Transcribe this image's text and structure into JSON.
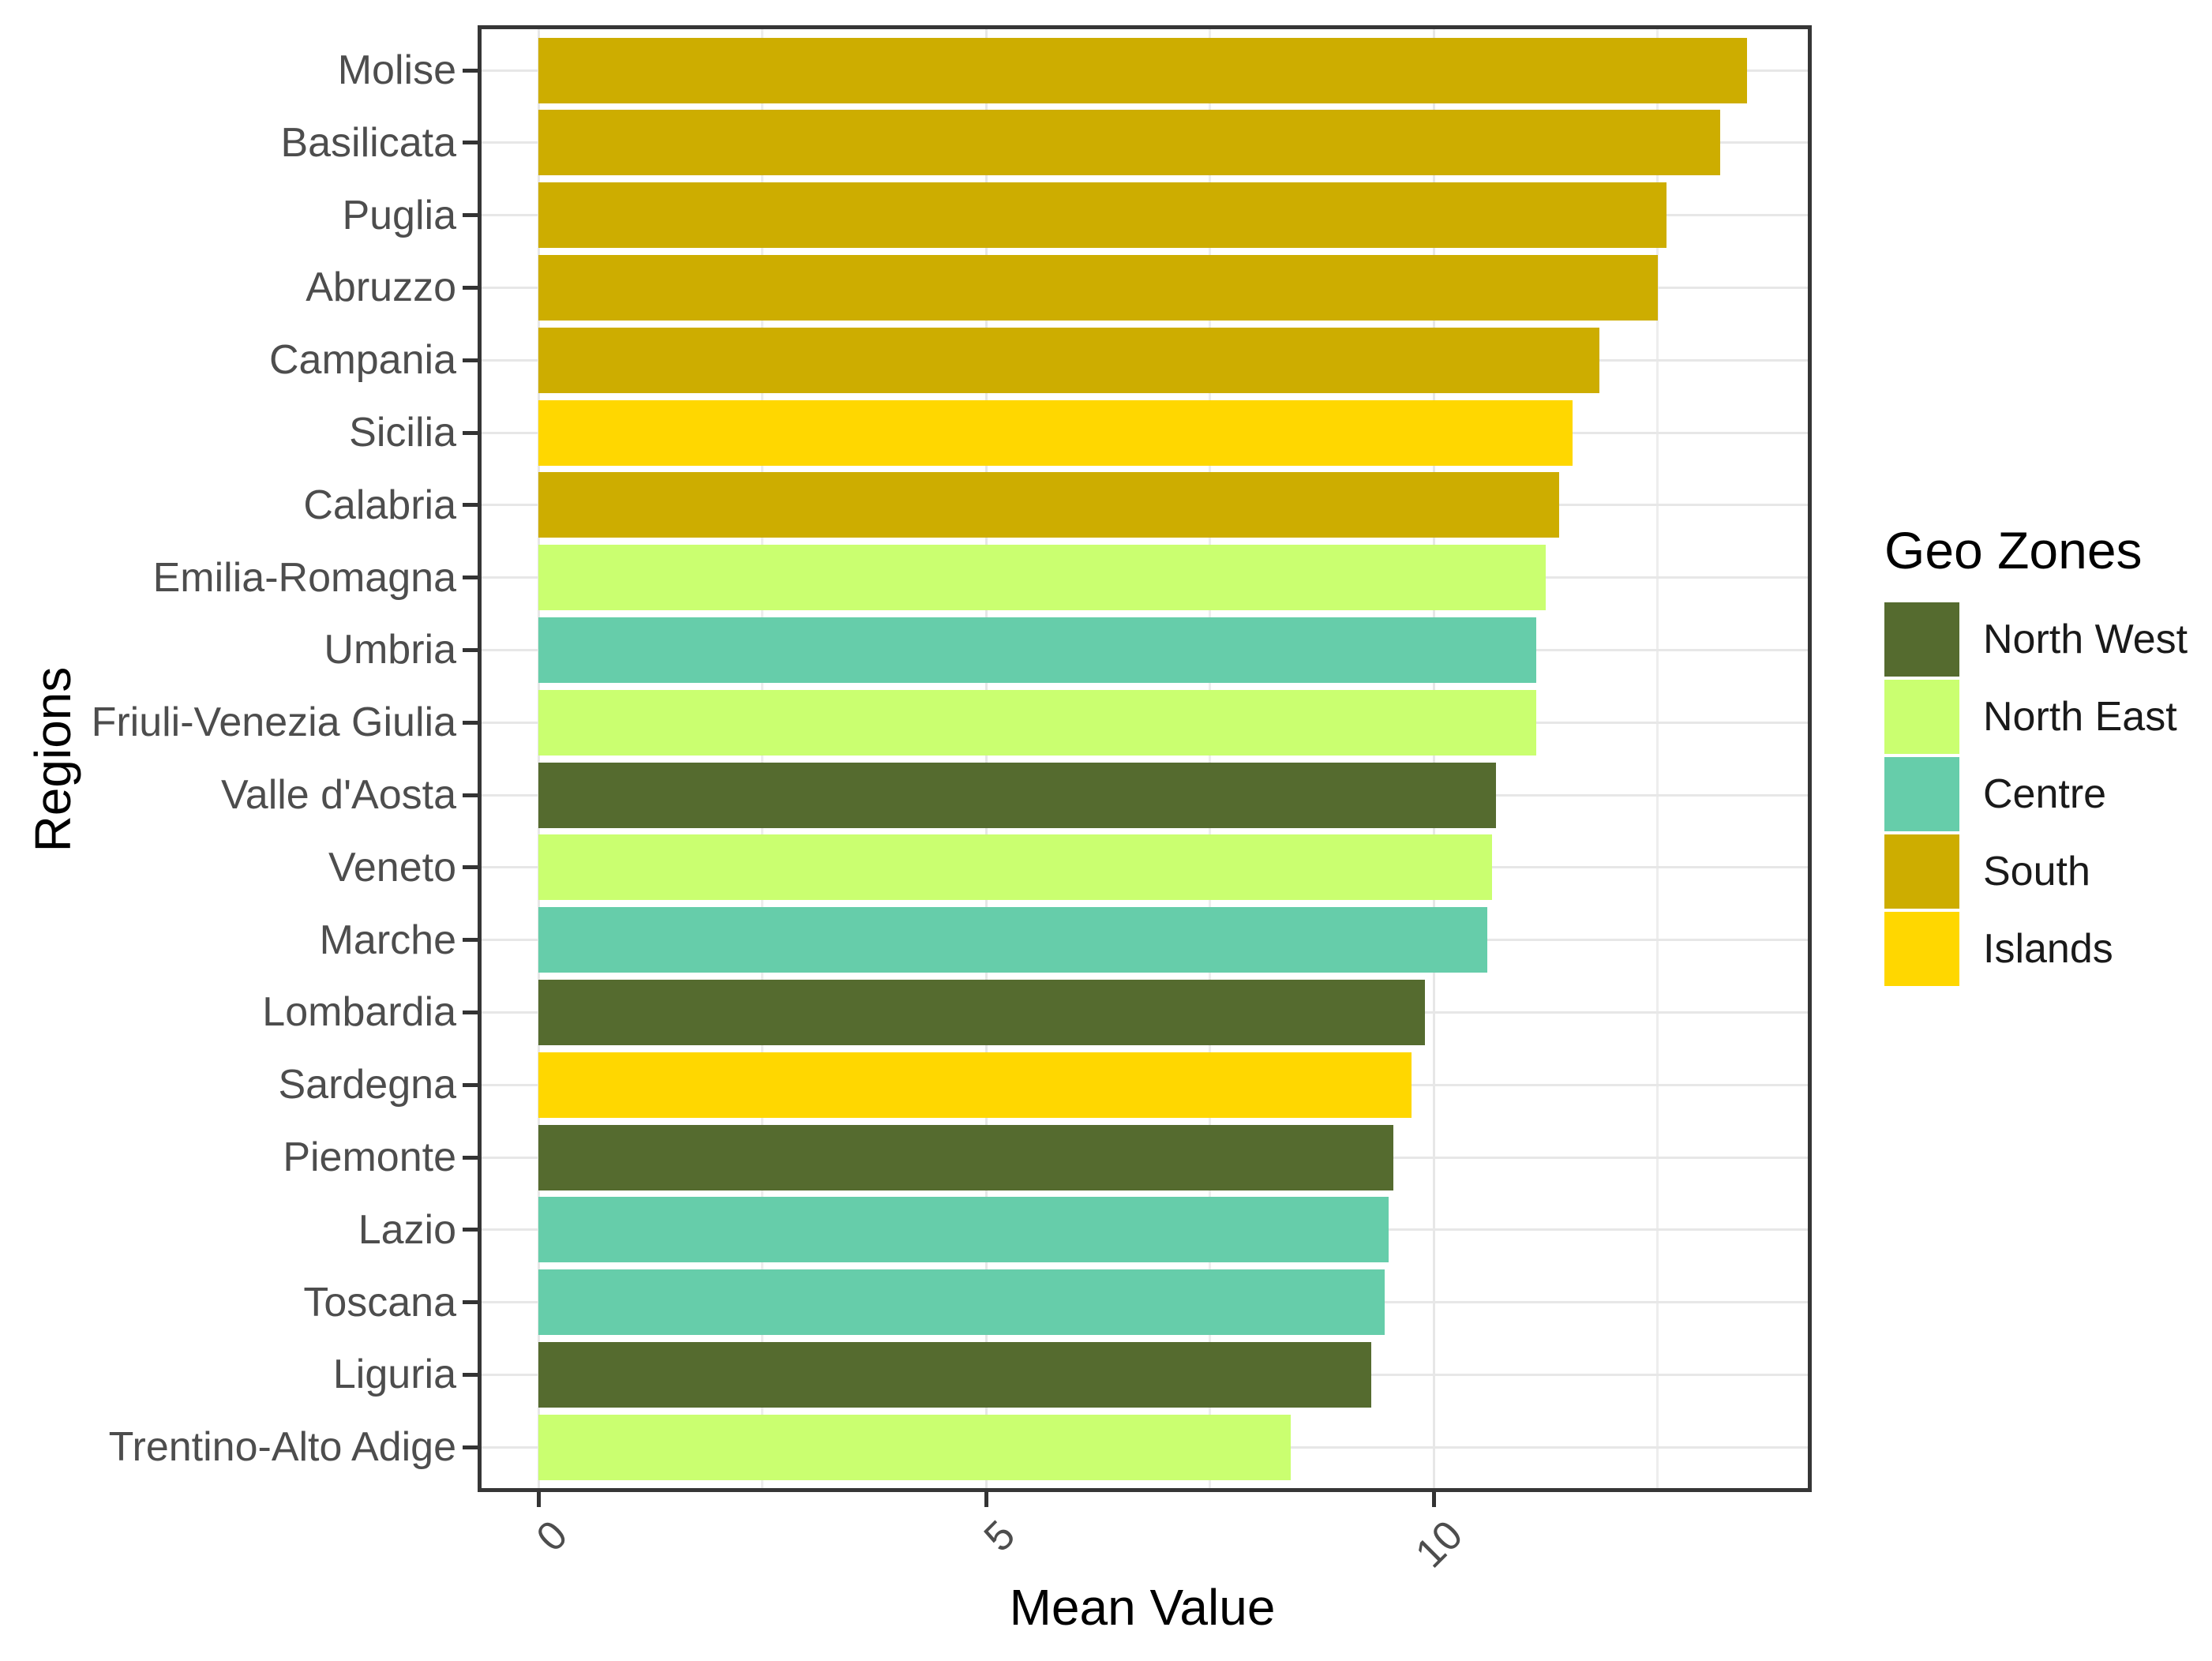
{
  "chart_data": {
    "type": "bar",
    "orientation": "horizontal",
    "title": "",
    "xlabel": "Mean Value",
    "ylabel": "Regions",
    "x_ticks": [
      0,
      5,
      10
    ],
    "x_gridlines": [
      0,
      2.5,
      5,
      7.5,
      10,
      12.5
    ],
    "xlim": [
      -0.7,
      14.2
    ],
    "grid": true,
    "legend": {
      "title": "Geo Zones",
      "position": "right",
      "entries": [
        {
          "label": "North West",
          "color": "#556B2F"
        },
        {
          "label": "North East",
          "color": "#CAFF70"
        },
        {
          "label": "Centre",
          "color": "#66CDAA"
        },
        {
          "label": "South",
          "color": "#CDAD00"
        },
        {
          "label": "Islands",
          "color": "#FFD700"
        }
      ]
    },
    "zone_colors": {
      "North West": "#556B2F",
      "North East": "#CAFF70",
      "Centre": "#66CDAA",
      "South": "#CDAD00",
      "Islands": "#FFD700"
    },
    "bars": [
      {
        "region": "Molise",
        "zone": "South",
        "value": 13.5
      },
      {
        "region": "Basilicata",
        "zone": "South",
        "value": 13.2
      },
      {
        "region": "Puglia",
        "zone": "South",
        "value": 12.6
      },
      {
        "region": "Abruzzo",
        "zone": "South",
        "value": 12.5
      },
      {
        "region": "Campania",
        "zone": "South",
        "value": 11.85
      },
      {
        "region": "Sicilia",
        "zone": "Islands",
        "value": 11.55
      },
      {
        "region": "Calabria",
        "zone": "South",
        "value": 11.4
      },
      {
        "region": "Emilia-Romagna",
        "zone": "North East",
        "value": 11.25
      },
      {
        "region": "Umbria",
        "zone": "Centre",
        "value": 11.15
      },
      {
        "region": "Friuli-Venezia Giulia",
        "zone": "North East",
        "value": 11.15
      },
      {
        "region": "Valle d'Aosta",
        "zone": "North West",
        "value": 10.7
      },
      {
        "region": "Veneto",
        "zone": "North East",
        "value": 10.65
      },
      {
        "region": "Marche",
        "zone": "Centre",
        "value": 10.6
      },
      {
        "region": "Lombardia",
        "zone": "North West",
        "value": 9.9
      },
      {
        "region": "Sardegna",
        "zone": "Islands",
        "value": 9.75
      },
      {
        "region": "Piemonte",
        "zone": "North West",
        "value": 9.55
      },
      {
        "region": "Lazio",
        "zone": "Centre",
        "value": 9.5
      },
      {
        "region": "Toscana",
        "zone": "Centre",
        "value": 9.45
      },
      {
        "region": "Liguria",
        "zone": "North West",
        "value": 9.3
      },
      {
        "region": "Trentino-Alto Adige",
        "zone": "North East",
        "value": 8.4
      }
    ],
    "colors": {
      "panel_border": "#363636",
      "gridline_major": "#e7e7e7",
      "gridline_minor": "#ededed",
      "tick": "#333333",
      "tick_label": "#4d4d4d",
      "axis_title": "#000000"
    }
  }
}
